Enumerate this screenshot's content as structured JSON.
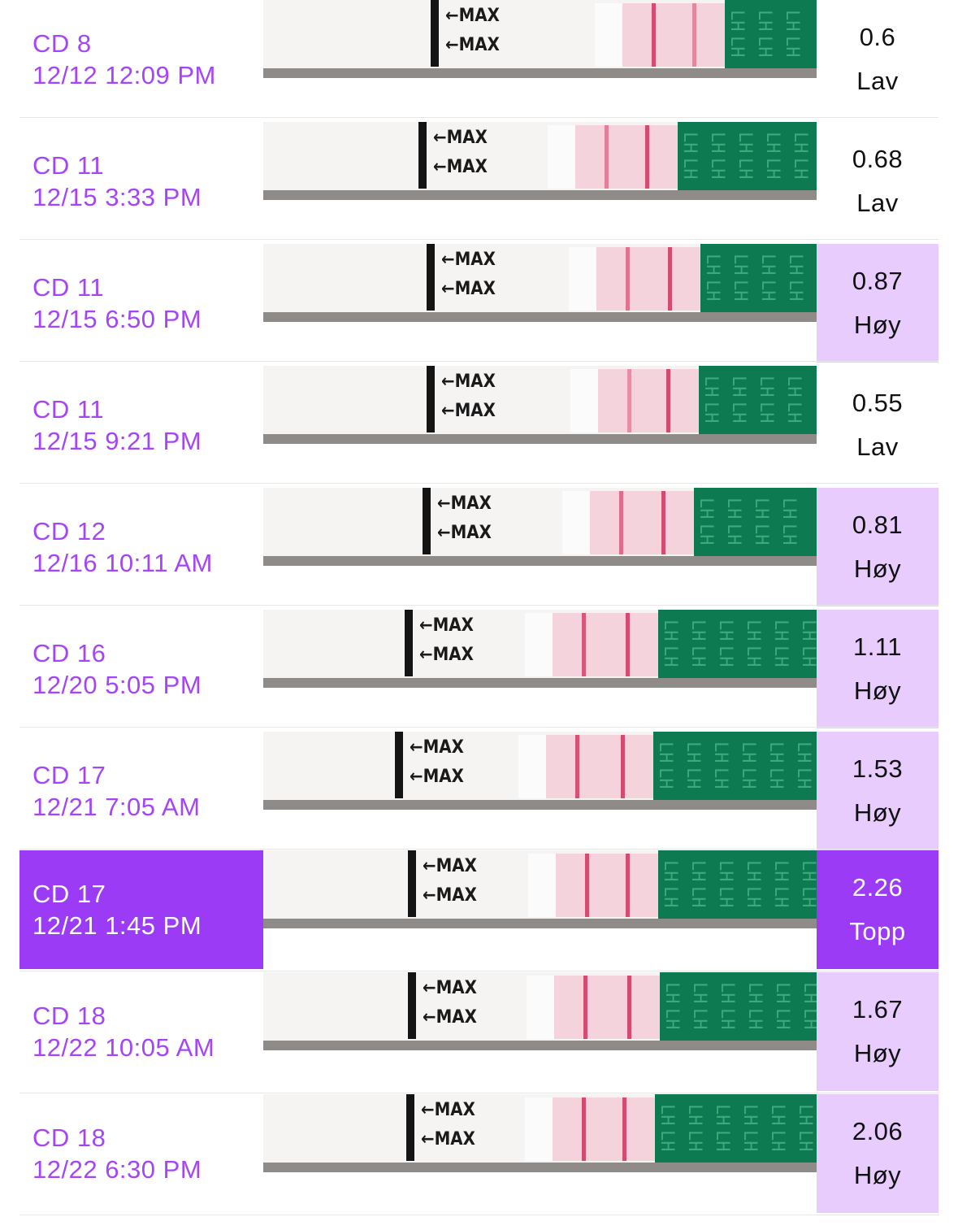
{
  "colors": {
    "accent": "#a445f7",
    "selected_bg": "#9b3bf5",
    "high_bg": "#e7ccfd",
    "strip_green": "#0d7a52",
    "test_line": "#d54a6f"
  },
  "strip_text": {
    "max_label": "MAX",
    "lh_label": "LH"
  },
  "rows": [
    {
      "cycle_day": "CD 8",
      "timestamp": "12/12 12:09 PM",
      "value": "0.6",
      "level": "Lav"
    },
    {
      "cycle_day": "CD 11",
      "timestamp": "12/15 3:33 PM",
      "value": "0.68",
      "level": "Lav"
    },
    {
      "cycle_day": "CD 11",
      "timestamp": "12/15 6:50 PM",
      "value": "0.87",
      "level": "Høy"
    },
    {
      "cycle_day": "CD 11",
      "timestamp": "12/15 9:21 PM",
      "value": "0.55",
      "level": "Lav"
    },
    {
      "cycle_day": "CD 12",
      "timestamp": "12/16 10:11 AM",
      "value": "0.81",
      "level": "Høy"
    },
    {
      "cycle_day": "CD 16",
      "timestamp": "12/20 5:05 PM",
      "value": "1.11",
      "level": "Høy"
    },
    {
      "cycle_day": "CD 17",
      "timestamp": "12/21 7:05 AM",
      "value": "1.53",
      "level": "Høy"
    },
    {
      "cycle_day": "CD 17",
      "timestamp": "12/21 1:45 PM",
      "value": "2.26",
      "level": "Topp"
    },
    {
      "cycle_day": "CD 18",
      "timestamp": "12/22 10:05 AM",
      "value": "1.67",
      "level": "Høy"
    },
    {
      "cycle_day": "CD 18",
      "timestamp": "12/22 6:30 PM",
      "value": "2.06",
      "level": "Høy"
    }
  ]
}
